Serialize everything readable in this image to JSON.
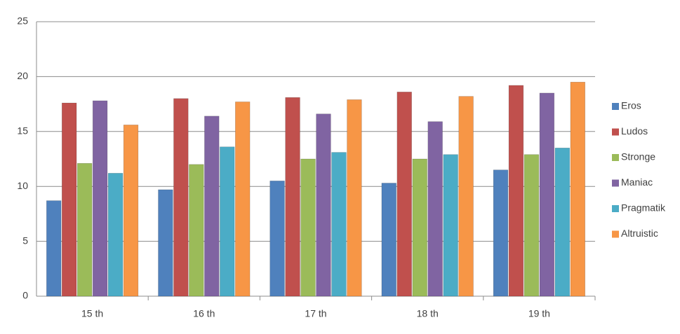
{
  "chart_data": {
    "type": "bar",
    "categories": [
      "15 th",
      "16 th",
      "17 th",
      "18 th",
      "19 th"
    ],
    "series": [
      {
        "name": "Eros",
        "color": "#4f81bd",
        "values": [
          8.7,
          9.7,
          10.5,
          10.3,
          11.5
        ]
      },
      {
        "name": "Ludos",
        "color": "#c0504d",
        "values": [
          17.6,
          18.0,
          18.1,
          18.6,
          19.2
        ]
      },
      {
        "name": "Stronge",
        "color": "#9bbb59",
        "values": [
          12.1,
          12.0,
          12.5,
          12.5,
          12.9
        ]
      },
      {
        "name": "Maniac",
        "color": "#8064a2",
        "values": [
          17.8,
          16.4,
          16.6,
          15.9,
          18.5
        ]
      },
      {
        "name": "Pragmatik",
        "color": "#4bacc6",
        "values": [
          11.2,
          13.6,
          13.1,
          12.9,
          13.5
        ]
      },
      {
        "name": "Altruistic",
        "color": "#f79646",
        "values": [
          15.6,
          17.7,
          17.9,
          18.2,
          19.5
        ]
      }
    ],
    "ylim": [
      0,
      25
    ],
    "yticks": [
      0,
      5,
      10,
      15,
      20,
      25
    ],
    "grid": true,
    "legend": "right"
  }
}
